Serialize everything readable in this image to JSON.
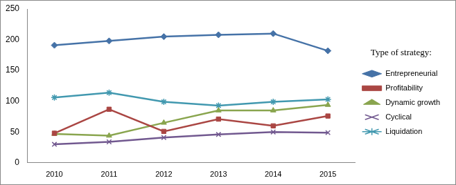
{
  "chart_data": {
    "type": "line",
    "legend_title": "Type of strategy:",
    "categories": [
      "2010",
      "2011",
      "2012",
      "2013",
      "2014",
      "2015"
    ],
    "series": [
      {
        "name": "Entrepreneurial",
        "color": "#4572a7",
        "marker": "diamond",
        "line_style": "solid",
        "values": [
          191,
          198,
          205,
          208,
          210,
          182
        ]
      },
      {
        "name": "Profitability",
        "color": "#aa4643",
        "marker": "square",
        "line_style": "solid",
        "values": [
          48,
          87,
          51,
          71,
          60,
          76
        ]
      },
      {
        "name": "Dynamic growth",
        "color": "#89a54e",
        "marker": "triangle",
        "line_style": "solid",
        "values": [
          47,
          44,
          65,
          85,
          85,
          94
        ]
      },
      {
        "name": "Cyclical",
        "color": "#71588f",
        "marker": "x",
        "line_style": "solid",
        "values": [
          30,
          34,
          41,
          46,
          50,
          49
        ]
      },
      {
        "name": "Liquidation",
        "color": "#4198af",
        "marker": "star",
        "line_style": "solid",
        "values": [
          106,
          114,
          99,
          93,
          99,
          103
        ]
      }
    ],
    "ylim": [
      0,
      250
    ],
    "yticks": [
      0,
      50,
      100,
      150,
      200,
      250
    ],
    "grid": false,
    "legend": "right"
  }
}
